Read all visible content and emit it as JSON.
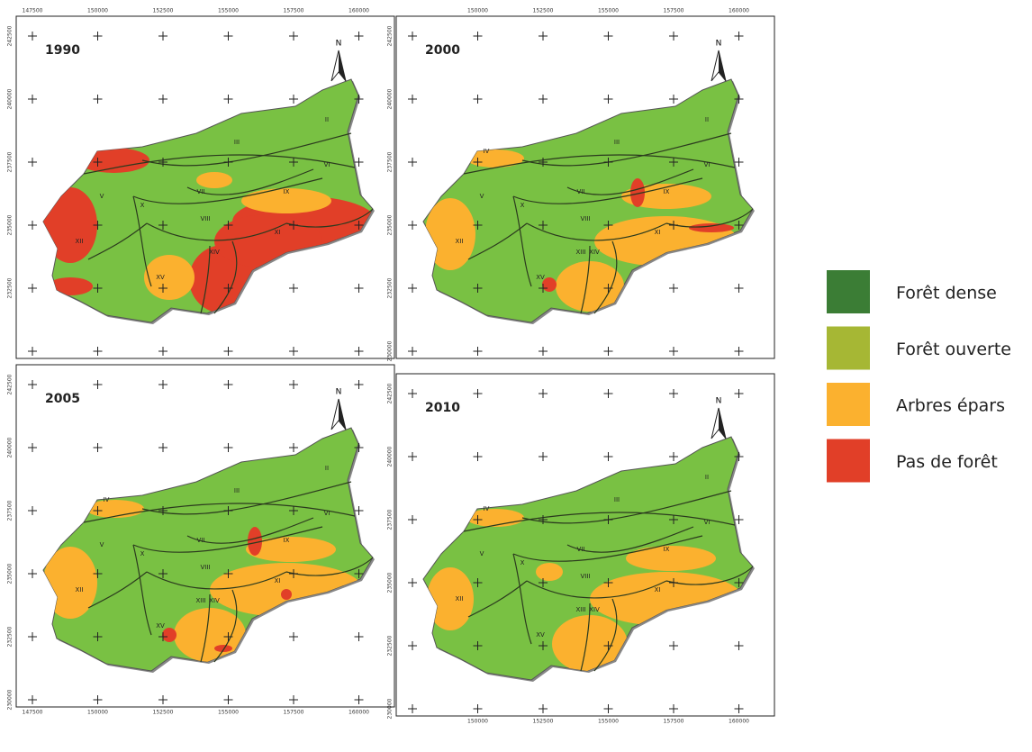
{
  "panels": [
    {
      "year": "1990",
      "north": "N",
      "x_labels": [
        "147500",
        "150000",
        "152500",
        "155000",
        "157500",
        "160000"
      ],
      "y_labels": [
        "242500",
        "240000",
        "237500",
        "235000",
        "232500"
      ],
      "regions": [
        "II",
        "III",
        "V",
        "VI",
        "VII",
        "VIII",
        "IX",
        "X",
        "XI",
        "XII",
        "XIV",
        "XV"
      ]
    },
    {
      "year": "2000",
      "north": "N",
      "x_labels": [
        "150000",
        "152500",
        "155000",
        "157500",
        "160000"
      ],
      "y_labels": [
        "242500",
        "240000",
        "237500",
        "235000",
        "232500",
        "230000"
      ],
      "regions": [
        "II",
        "III",
        "IV",
        "V",
        "VI",
        "VII",
        "VIII",
        "IX",
        "X",
        "XI",
        "XII",
        "XIII",
        "XIV",
        "XV"
      ]
    },
    {
      "year": "2005",
      "north": "N",
      "x_labels": [
        "147500",
        "150000",
        "152500",
        "155000",
        "157500",
        "160000"
      ],
      "y_labels": [
        "242500",
        "240000",
        "237500",
        "235000",
        "232500",
        "230000"
      ],
      "regions": [
        "II",
        "III",
        "IV",
        "V",
        "VI",
        "VII",
        "VIII",
        "IX",
        "X",
        "XI",
        "XII",
        "XIII",
        "XIV",
        "XV"
      ]
    },
    {
      "year": "2010",
      "north": "N",
      "x_labels": [
        "150000",
        "152500",
        "155000",
        "157500",
        "160000"
      ],
      "y_labels": [
        "242500",
        "240000",
        "237500",
        "235000",
        "232500",
        "230000"
      ],
      "regions": [
        "II",
        "III",
        "IV",
        "V",
        "VI",
        "VII",
        "VIII",
        "IX",
        "X",
        "XI",
        "XII",
        "XIII",
        "XIV",
        "XV"
      ]
    }
  ],
  "legend": [
    {
      "label": "Forêt dense",
      "color": "#3b7d35"
    },
    {
      "label": "Forêt ouverte",
      "color": "#a6b734"
    },
    {
      "label": "Arbres épars",
      "color": "#fbb12f"
    },
    {
      "label": "Pas de forêt",
      "color": "#e13f28"
    }
  ]
}
